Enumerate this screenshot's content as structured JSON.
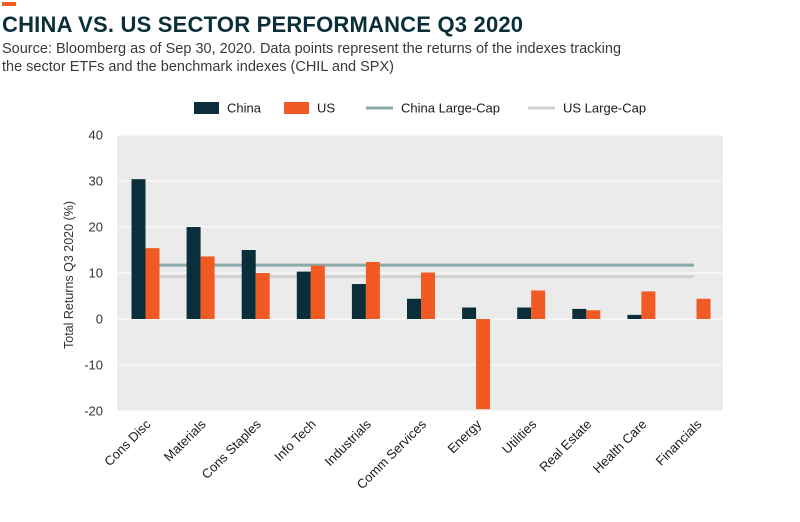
{
  "title": "CHINA VS. US SECTOR PERFORMANCE Q3 2020",
  "subtitle": "Source: Bloomberg as of Sep 30, 2020. Data points represent the returns of the indexes tracking the sector ETFs and the benchmark indexes (CHIL and SPX)",
  "chart_data": {
    "type": "bar",
    "ylabel": "Total Returns Q3 2020 (%)",
    "ylim": [
      -20,
      40
    ],
    "yticks": [
      -20,
      -10,
      0,
      10,
      20,
      30,
      40
    ],
    "grid": true,
    "legend_position": "top",
    "categories": [
      "Cons Disc",
      "Materials",
      "Cons Staples",
      "Info Tech",
      "Industrials",
      "Comm Services",
      "Energy",
      "Utilities",
      "Real Estate",
      "Health Care",
      "Financials"
    ],
    "series": [
      {
        "name": "China",
        "color": "#0b2f3a",
        "values": [
          30.4,
          20.0,
          15.0,
          10.3,
          7.6,
          4.4,
          2.5,
          2.5,
          2.2,
          0.9,
          null
        ]
      },
      {
        "name": "US",
        "color": "#f15a22",
        "values": [
          15.4,
          13.6,
          10.0,
          11.6,
          12.4,
          10.1,
          -19.6,
          6.2,
          1.9,
          6.0,
          4.4
        ]
      }
    ],
    "reference_lines": [
      {
        "name": "China Large-Cap",
        "color": "#8aaaa8",
        "value": 11.7
      },
      {
        "name": "US Large-Cap",
        "color": "#d3d3d3",
        "value": 9.2
      }
    ]
  }
}
